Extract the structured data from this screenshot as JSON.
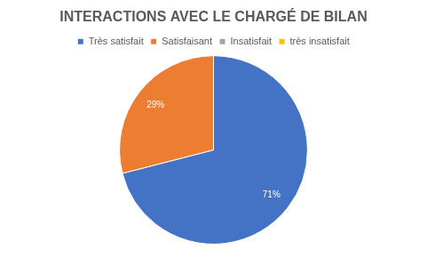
{
  "chart_data": {
    "type": "pie",
    "title": "INTERACTIONS AVEC LE CHARGÉ DE BILAN",
    "categories": [
      "Très satisfait",
      "Satisfaisant",
      "Insatisfait",
      "très insatisfait"
    ],
    "values": [
      71,
      29,
      0,
      0
    ],
    "value_labels": [
      "71%",
      "29%",
      null,
      null
    ],
    "colors": [
      "#4472c4",
      "#ed7d31",
      "#a5a5a5",
      "#ffc000"
    ],
    "legend": "top",
    "data_labels": true
  }
}
